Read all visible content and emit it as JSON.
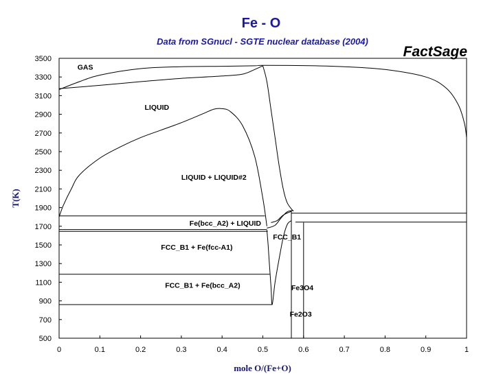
{
  "chart_data": {
    "type": "line",
    "title": "Fe - O",
    "subtitle": "Data from SGnucl - SGTE nuclear database (2004)",
    "watermark": "FactSage",
    "xlabel": "mole O/(Fe+O)",
    "ylabel": "T(K)",
    "xlim": [
      0,
      1
    ],
    "ylim": [
      500,
      3500
    ],
    "x_ticks": [
      "0",
      "0.1",
      "0.2",
      "0.3",
      "0.4",
      "0.5",
      "0.6",
      "0.7",
      "0.8",
      "0.9",
      "1"
    ],
    "y_ticks": [
      "500",
      "700",
      "900",
      "1100",
      "1300",
      "1500",
      "1700",
      "1900",
      "2100",
      "2300",
      "2500",
      "2700",
      "2900",
      "3100",
      "3300",
      "3500"
    ],
    "grid": false,
    "region_labels": [
      {
        "text": "GAS",
        "x": 0.045,
        "y": 3380
      },
      {
        "text": "LIQUID",
        "x": 0.21,
        "y": 2950
      },
      {
        "text": "LIQUID + LIQUID#2",
        "x": 0.3,
        "y": 2200
      },
      {
        "text": "Fe(bcc_A2) + LIQUID",
        "x": 0.32,
        "y": 1705
      },
      {
        "text": "FCC_B1",
        "x": 0.525,
        "y": 1560
      },
      {
        "text": "FCC_B1 + Fe(fcc-A1)",
        "x": 0.25,
        "y": 1450
      },
      {
        "text": "FCC_B1 + Fe(bcc_A2)",
        "x": 0.26,
        "y": 1040
      },
      {
        "text": "Fe3O4",
        "x": 0.57,
        "y": 1015
      },
      {
        "text": "Fe2O3",
        "x": 0.566,
        "y": 730
      }
    ],
    "series": [
      {
        "values": [
          [
            0,
            3175
          ],
          [
            0.1,
            3210
          ],
          [
            0.2,
            3250
          ],
          [
            0.3,
            3285
          ],
          [
            0.4,
            3310
          ],
          [
            0.45,
            3330
          ],
          [
            0.48,
            3380
          ],
          [
            0.5,
            3420
          ]
        ]
      },
      {
        "values": [
          [
            0,
            3165
          ],
          [
            0.05,
            3250
          ],
          [
            0.1,
            3320
          ],
          [
            0.2,
            3390
          ],
          [
            0.3,
            3410
          ],
          [
            0.4,
            3415
          ],
          [
            0.48,
            3420
          ],
          [
            0.5,
            3425
          ],
          [
            0.6,
            3422
          ],
          [
            0.7,
            3410
          ],
          [
            0.8,
            3380
          ],
          [
            0.9,
            3300
          ],
          [
            0.95,
            3180
          ],
          [
            0.98,
            3000
          ],
          [
            0.995,
            2800
          ],
          [
            1.0,
            2650
          ]
        ]
      },
      {
        "values": [
          [
            0.5,
            3420
          ],
          [
            0.51,
            3250
          ],
          [
            0.52,
            2950
          ],
          [
            0.53,
            2650
          ],
          [
            0.54,
            2350
          ],
          [
            0.55,
            2100
          ],
          [
            0.56,
            1950
          ],
          [
            0.575,
            1860
          ]
        ]
      },
      {
        "values": [
          [
            0,
            1800
          ],
          [
            0.01,
            1920
          ],
          [
            0.03,
            2100
          ],
          [
            0.05,
            2250
          ],
          [
            0.1,
            2430
          ],
          [
            0.15,
            2550
          ],
          [
            0.2,
            2650
          ],
          [
            0.25,
            2730
          ],
          [
            0.3,
            2810
          ],
          [
            0.35,
            2900
          ],
          [
            0.38,
            2955
          ],
          [
            0.4,
            2960
          ],
          [
            0.42,
            2930
          ],
          [
            0.45,
            2780
          ],
          [
            0.48,
            2450
          ],
          [
            0.5,
            2000
          ],
          [
            0.51,
            1700
          ]
        ]
      },
      {
        "values": [
          [
            0.51,
            1680
          ],
          [
            0.53,
            1710
          ],
          [
            0.545,
            1790
          ],
          [
            0.56,
            1855
          ],
          [
            0.575,
            1870
          ]
        ]
      },
      {
        "values": [
          [
            0.52,
            1740
          ],
          [
            0.535,
            1760
          ],
          [
            0.55,
            1820
          ],
          [
            0.57,
            1860
          ]
        ]
      },
      {
        "values": [
          [
            0.51,
            1660
          ],
          [
            0.513,
            1500
          ],
          [
            0.516,
            1300
          ],
          [
            0.52,
            1050
          ],
          [
            0.523,
            860
          ],
          [
            0.53,
            1100
          ],
          [
            0.54,
            1350
          ],
          [
            0.55,
            1580
          ],
          [
            0.56,
            1720
          ],
          [
            0.57,
            1760
          ]
        ]
      },
      {
        "values": [
          [
            0.57,
            500
          ],
          [
            0.57,
            1870
          ]
        ]
      },
      {
        "values": [
          [
            0.6,
            500
          ],
          [
            0.6,
            1740
          ]
        ]
      },
      {
        "values": [
          [
            0,
            1810
          ],
          [
            0.505,
            1810
          ]
        ]
      },
      {
        "values": [
          [
            0,
            1665
          ],
          [
            0.51,
            1665
          ]
        ]
      },
      {
        "values": [
          [
            0,
            1645
          ],
          [
            0.512,
            1645
          ]
        ]
      },
      {
        "values": [
          [
            0,
            1185
          ],
          [
            0.517,
            1185
          ]
        ]
      },
      {
        "values": [
          [
            0,
            860
          ],
          [
            0.523,
            860
          ]
        ]
      },
      {
        "values": [
          [
            0.57,
            1840
          ],
          [
            1,
            1840
          ]
        ]
      },
      {
        "values": [
          [
            0.58,
            1745
          ],
          [
            1,
            1745
          ]
        ]
      }
    ]
  }
}
